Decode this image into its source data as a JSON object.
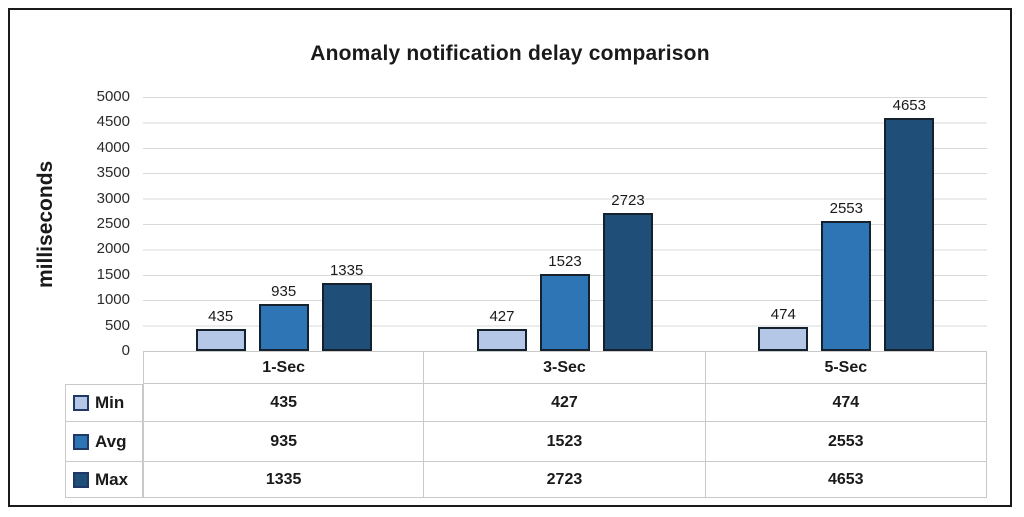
{
  "chart_data": {
    "type": "bar",
    "title": "Anomaly notification delay comparison",
    "xlabel": "",
    "ylabel": "milliseconds",
    "categories": [
      "1-Sec",
      "3-Sec",
      "5-Sec"
    ],
    "series": [
      {
        "name": "Min",
        "color": "#B4C7E7",
        "values": [
          435,
          427,
          474
        ]
      },
      {
        "name": "Avg",
        "color": "#2E75B6",
        "values": [
          935,
          1523,
          2553
        ]
      },
      {
        "name": "Max",
        "color": "#1F4E79",
        "values": [
          1335,
          2723,
          4653
        ]
      }
    ],
    "ylim": [
      0,
      5000
    ],
    "ytick_step": 500,
    "yticks": [
      "5000",
      "4500",
      "4000",
      "3500",
      "3000",
      "2500",
      "2000",
      "1500",
      "1000",
      "500",
      "0"
    ],
    "grid": "horizontal",
    "data_labels": true,
    "legend_position": "table-left-column",
    "colors": {
      "bar_outline": "#15222e",
      "swatch_outline": "#1f3864",
      "gridline": "#d9d9d9",
      "table_border": "#c9c9c9",
      "frame_border": "#1a1a1a",
      "text": "#1a1a1a"
    }
  }
}
